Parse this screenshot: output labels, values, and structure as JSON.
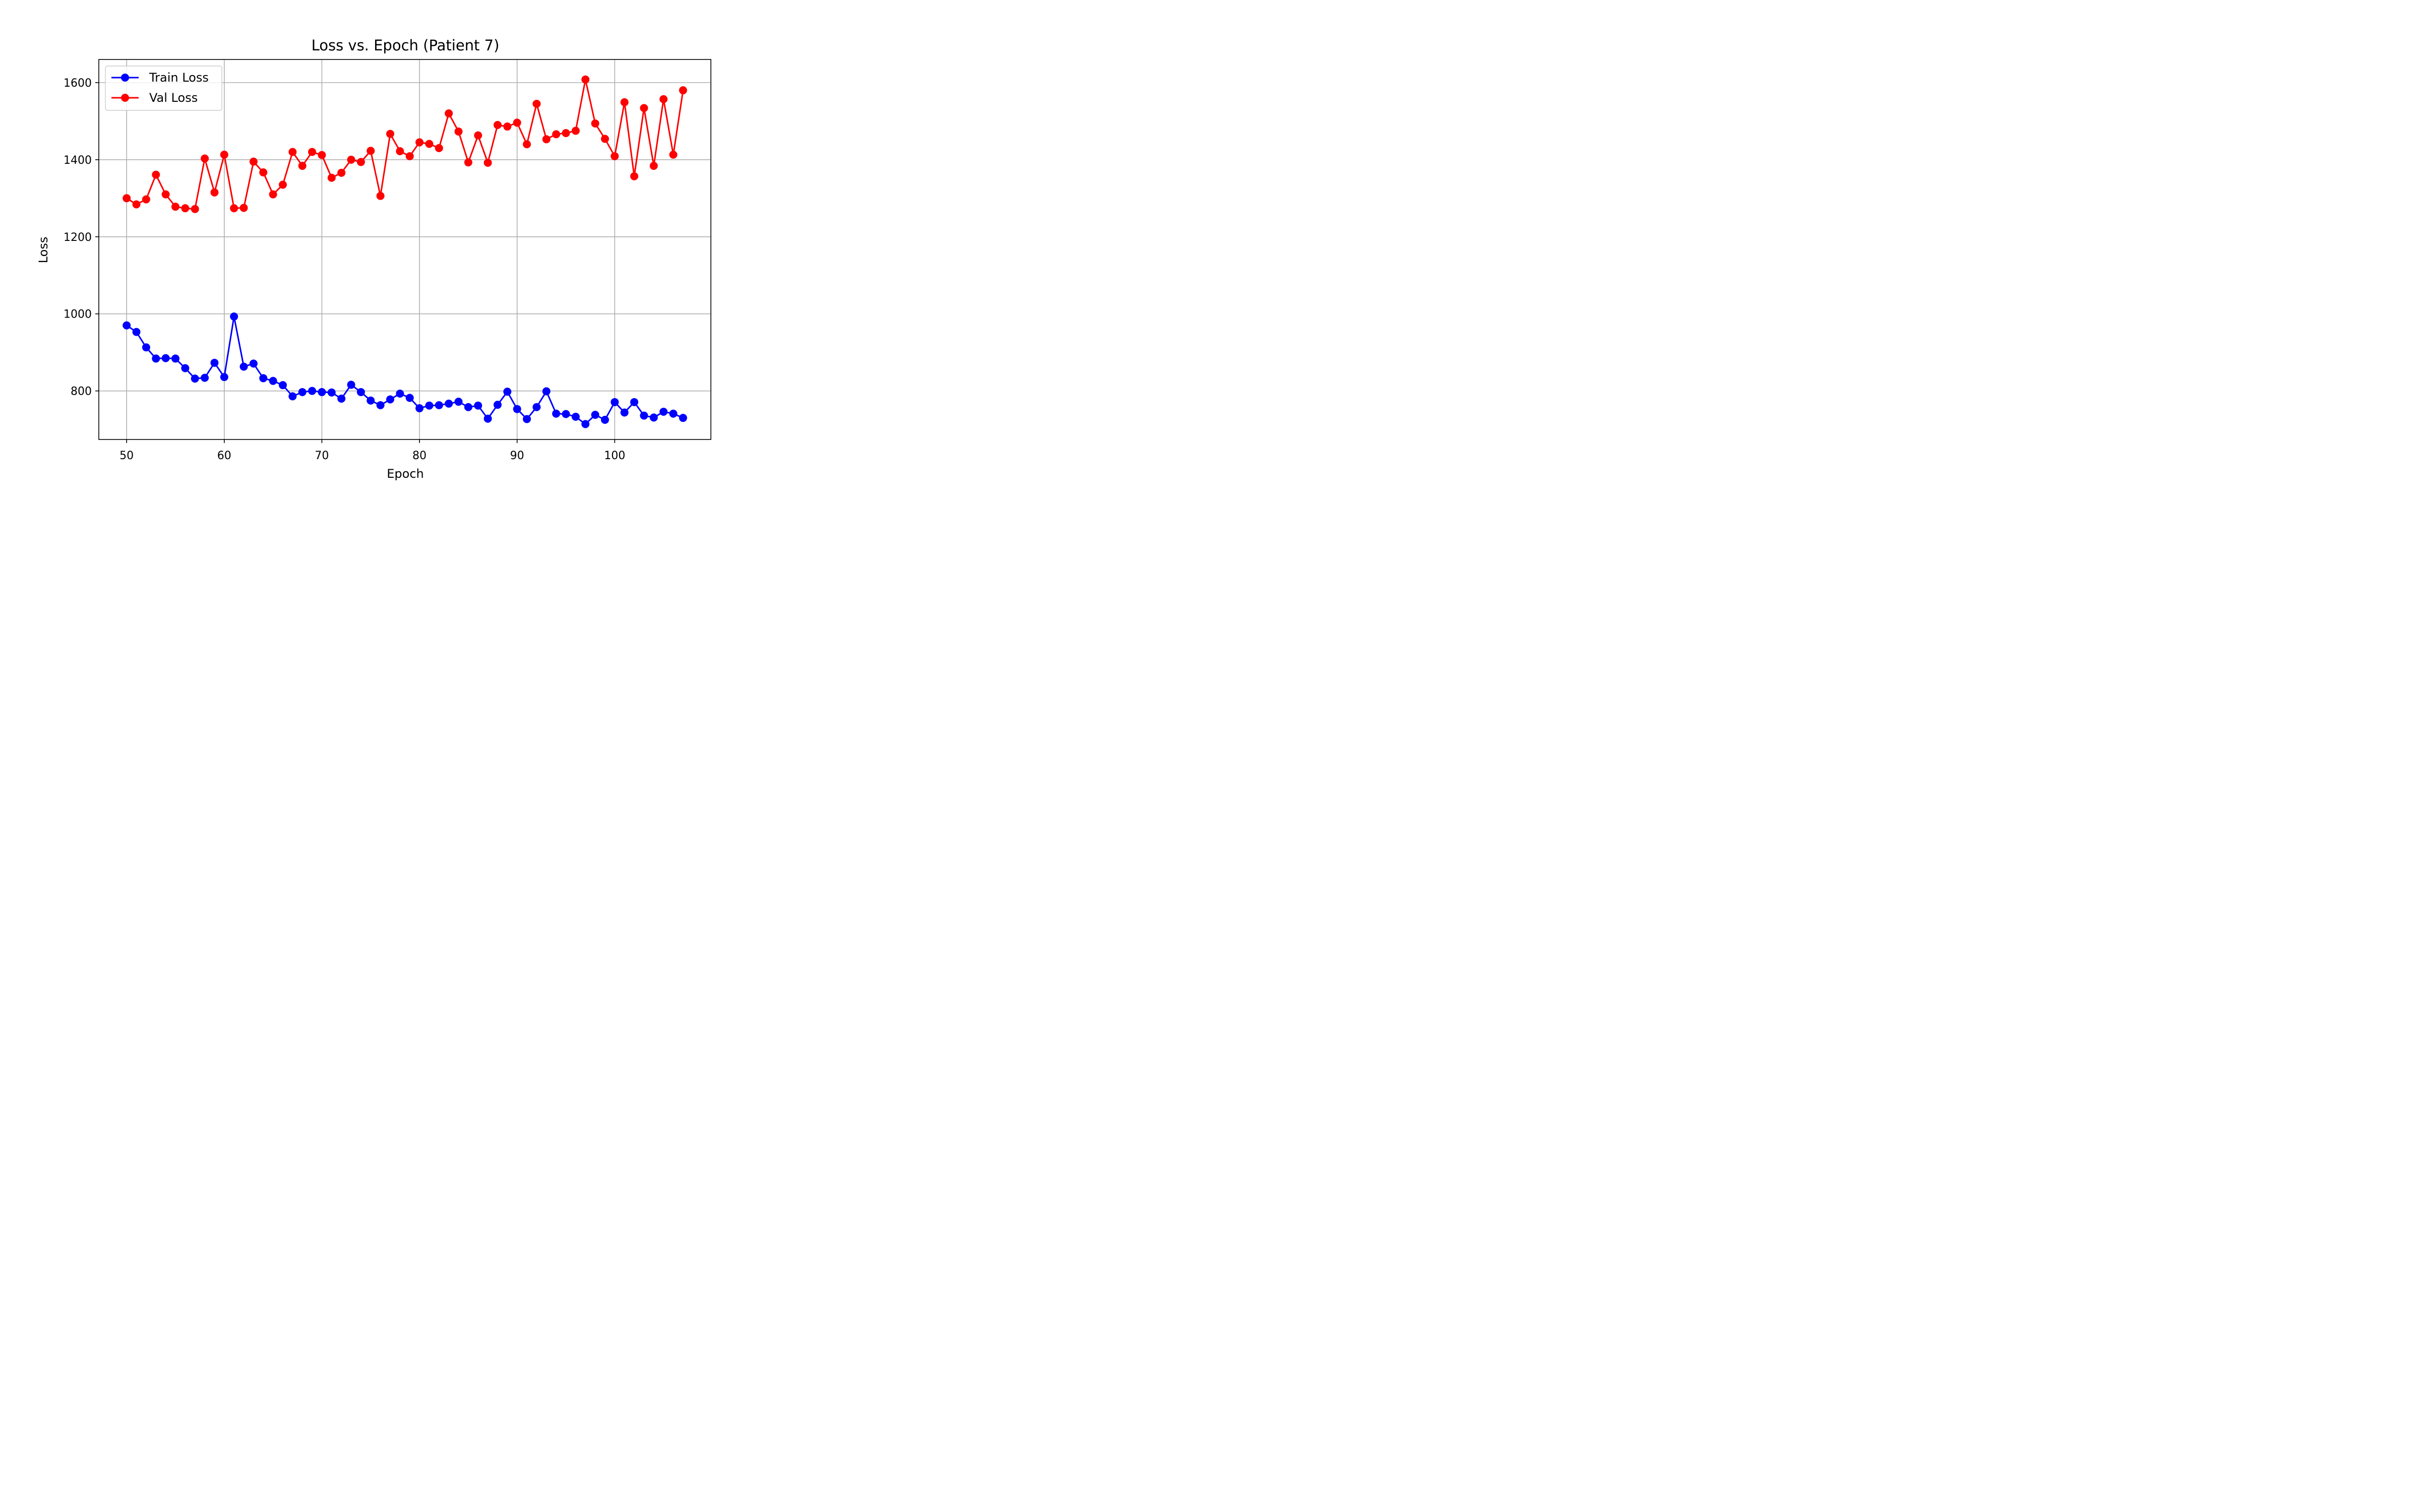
{
  "chart_data": {
    "type": "line",
    "title": "Loss vs. Epoch (Patient 7)",
    "xlabel": "Epoch",
    "ylabel": "Loss",
    "xlim": [
      47.15,
      109.85
    ],
    "ylim": [
      674,
      1660
    ],
    "xticks": [
      50,
      60,
      70,
      80,
      90,
      100
    ],
    "yticks": [
      800,
      1000,
      1200,
      1400,
      1600
    ],
    "grid": true,
    "legend_position": "upper-left",
    "x": [
      50,
      51,
      52,
      53,
      54,
      55,
      56,
      57,
      58,
      59,
      60,
      61,
      62,
      63,
      64,
      65,
      66,
      67,
      68,
      69,
      70,
      71,
      72,
      73,
      74,
      75,
      76,
      77,
      78,
      79,
      80,
      81,
      82,
      83,
      84,
      85,
      86,
      87,
      88,
      89,
      90,
      91,
      92,
      93,
      94,
      95,
      96,
      97,
      98,
      99,
      100,
      101,
      102,
      103,
      104,
      105,
      106,
      107
    ],
    "series": [
      {
        "name": "Train Loss",
        "color": "#0000ff",
        "values": [
          970,
          953,
          913,
          884,
          885,
          884,
          859,
          832,
          834,
          873,
          836,
          993,
          863,
          871,
          833,
          826,
          815,
          786,
          797,
          800,
          797,
          796,
          780,
          816,
          797,
          775,
          763,
          778,
          793,
          782,
          755,
          762,
          763,
          767,
          772,
          758,
          762,
          728,
          764,
          798,
          753,
          727,
          758,
          799,
          741,
          740,
          733,
          714,
          738,
          725,
          771,
          744,
          771,
          736,
          731,
          746,
          741,
          730
        ]
      },
      {
        "name": "Val Loss",
        "color": "#ff0000",
        "values": [
          1300,
          1284,
          1297,
          1361,
          1310,
          1278,
          1274,
          1272,
          1403,
          1315,
          1413,
          1274,
          1275,
          1395,
          1367,
          1310,
          1335,
          1420,
          1384,
          1420,
          1412,
          1353,
          1366,
          1400,
          1394,
          1423,
          1306,
          1467,
          1422,
          1409,
          1445,
          1441,
          1430,
          1520,
          1473,
          1393,
          1463,
          1392,
          1490,
          1486,
          1496,
          1440,
          1545,
          1453,
          1466,
          1469,
          1475,
          1608,
          1494,
          1454,
          1409,
          1549,
          1357,
          1534,
          1384,
          1557,
          1413,
          1580
        ]
      }
    ]
  }
}
